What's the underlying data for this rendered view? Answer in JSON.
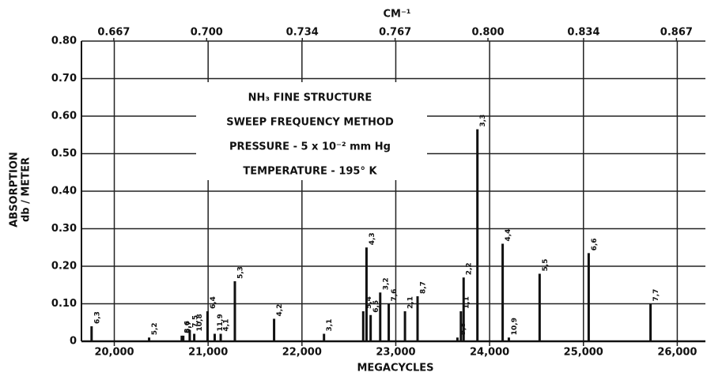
{
  "chart_data": {
    "type": "stick",
    "top_axis_label": "CM⁻¹",
    "xlabel": "MEGACYCLES",
    "ylabel": [
      "ABSORPTION",
      "db / METER"
    ],
    "annotations": [
      "NH₃ FINE STRUCTURE",
      "SWEEP FREQUENCY METHOD",
      "PRESSURE - 5 x 10⁻² mm Hg",
      "TEMPERATURE - 195° K"
    ],
    "labels": [
      "6,3",
      "5,2",
      "8,6",
      "9,7",
      "7,5",
      "10,8",
      "6,4",
      "11,9",
      "4,1",
      "5,3",
      "4,2",
      "3,1",
      "5,4",
      "4,3",
      "6,5",
      "3,2",
      "7,6",
      "2,1",
      "8,7",
      "9,8",
      "1,1",
      "2,2",
      "3,3",
      "4,4",
      "10,9",
      "5,5",
      "6,6",
      "7,7"
    ],
    "x": [
      19758,
      20371,
      20719,
      20735,
      20804,
      20852,
      20994,
      21070,
      21134,
      21285,
      21703,
      22235,
      22653,
      22688,
      22732,
      22834,
      22925,
      23098,
      23232,
      23657,
      23694,
      23723,
      23870,
      24139,
      24205,
      24533,
      25056,
      25715
    ],
    "values": [
      0.04,
      0.01,
      0.015,
      0.015,
      0.03,
      0.02,
      0.08,
      0.02,
      0.02,
      0.16,
      0.06,
      0.02,
      0.08,
      0.25,
      0.07,
      0.13,
      0.1,
      0.08,
      0.12,
      0.01,
      0.08,
      0.17,
      0.565,
      0.26,
      0.01,
      0.18,
      0.235,
      0.1
    ],
    "color": "#111111",
    "xlim": [
      19650,
      26300
    ],
    "xticks": [
      {
        "value": 20000,
        "label": "20,000"
      },
      {
        "value": 21000,
        "label": "21,000"
      },
      {
        "value": 22000,
        "label": "22,000"
      },
      {
        "value": 23000,
        "label": "23,000"
      },
      {
        "value": 24000,
        "label": "24,000"
      },
      {
        "value": 25000,
        "label": "25,000"
      },
      {
        "value": 26000,
        "label": "26,000"
      }
    ],
    "x2lim": [
      0.6555,
      0.8773
    ],
    "x2ticks": [
      0.667,
      {
        "value": 0.7,
        "label": "0.700"
      },
      0.734,
      0.767,
      {
        "value": 0.8,
        "label": "0.800"
      },
      0.834,
      0.867
    ],
    "ylim": [
      0,
      0.8
    ],
    "yticks": [
      0,
      {
        "value": 0.1,
        "label": "0.10"
      },
      {
        "value": 0.2,
        "label": "0.20"
      },
      {
        "value": 0.3,
        "label": "0.30"
      },
      {
        "value": 0.4,
        "label": "0.40"
      },
      {
        "value": 0.5,
        "label": "0.50"
      },
      {
        "value": 0.6,
        "label": "0.60"
      },
      {
        "value": 0.7,
        "label": "0.70"
      },
      {
        "value": 0.8,
        "label": "0.80"
      }
    ],
    "grid": true
  }
}
